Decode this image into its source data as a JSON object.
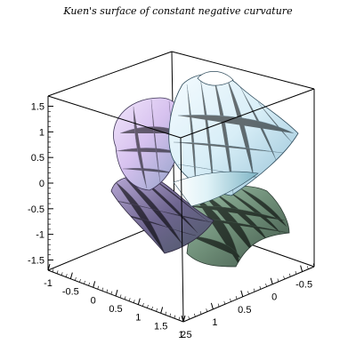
{
  "chart_data": {
    "type": "surface3d",
    "title": "Kuen's surface of constant negative curvature",
    "xlabel": "",
    "ylabel": "",
    "zlabel": "",
    "axis_z": {
      "range": [
        -1.7,
        1.7
      ],
      "ticks": [
        {
          "value": 1.5,
          "label": "1.5"
        },
        {
          "value": 1,
          "label": "1"
        },
        {
          "value": 0.5,
          "label": "0.5"
        },
        {
          "value": 0,
          "label": "0"
        },
        {
          "value": -0.5,
          "label": "-0.5"
        },
        {
          "value": -1,
          "label": "-1"
        },
        {
          "value": -1.5,
          "label": "-1.5"
        }
      ]
    },
    "axis_left_bottom": {
      "range": [
        -1,
        2
      ],
      "ticks": [
        {
          "value": -1,
          "label": "-1"
        },
        {
          "value": -0.5,
          "label": "-0.5"
        },
        {
          "value": 0,
          "label": "0"
        },
        {
          "value": 0.5,
          "label": "0.5"
        },
        {
          "value": 1,
          "label": "1"
        },
        {
          "value": 1.5,
          "label": "1.5"
        },
        {
          "value": 2,
          "label": "2"
        }
      ]
    },
    "axis_right_bottom": {
      "range": [
        1.5,
        -0.7
      ],
      "ticks": [
        {
          "value": 1.5,
          "label": "1.5"
        },
        {
          "value": 1,
          "label": "1"
        },
        {
          "value": 0.5,
          "label": "0.5"
        },
        {
          "value": 0,
          "label": "0"
        },
        {
          "value": -0.5,
          "label": "-0.5"
        }
      ]
    },
    "grid": false,
    "box": true,
    "surface": "Kuen's surface",
    "colors": {
      "top_light": "#e9f6fb",
      "side_blue": "#a9cfe0",
      "side_violet": "#c9b3e8",
      "lower_green": "#6f8f7a",
      "dark_purple": "#6a5f83"
    }
  }
}
